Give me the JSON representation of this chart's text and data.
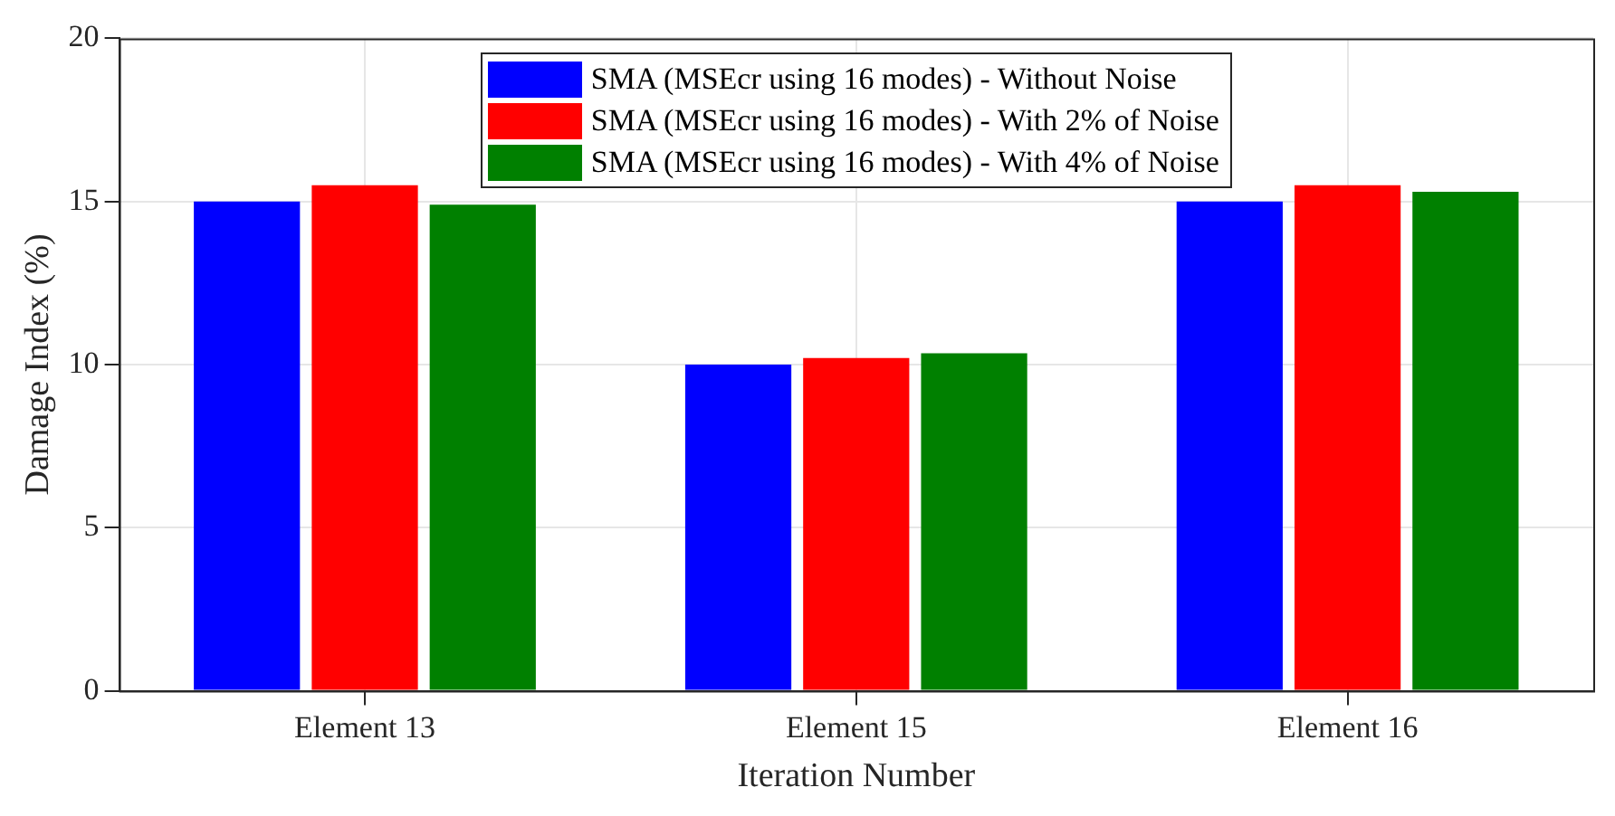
{
  "chart_data": {
    "type": "bar",
    "xlabel": "Iteration Number",
    "ylabel": "Damage Index (%)",
    "categories": [
      "Element 13",
      "Element 15",
      "Element 16"
    ],
    "series": [
      {
        "name": "SMA (MSEcr using 16 modes) - Without Noise",
        "color": "#0000ff",
        "values": [
          15,
          10,
          15
        ]
      },
      {
        "name": "SMA (MSEcr using 16 modes) - With 2% of Noise",
        "color": "#ff0000",
        "values": [
          15.5,
          10.2,
          15.5
        ]
      },
      {
        "name": "SMA (MSEcr using 16 modes) - With 4% of Noise",
        "color": "#008000",
        "values": [
          14.9,
          10.35,
          15.3
        ]
      }
    ],
    "ylim": [
      0,
      20
    ],
    "yticks": [
      0,
      5,
      10,
      15,
      20
    ],
    "grid": true,
    "legend": "top"
  }
}
